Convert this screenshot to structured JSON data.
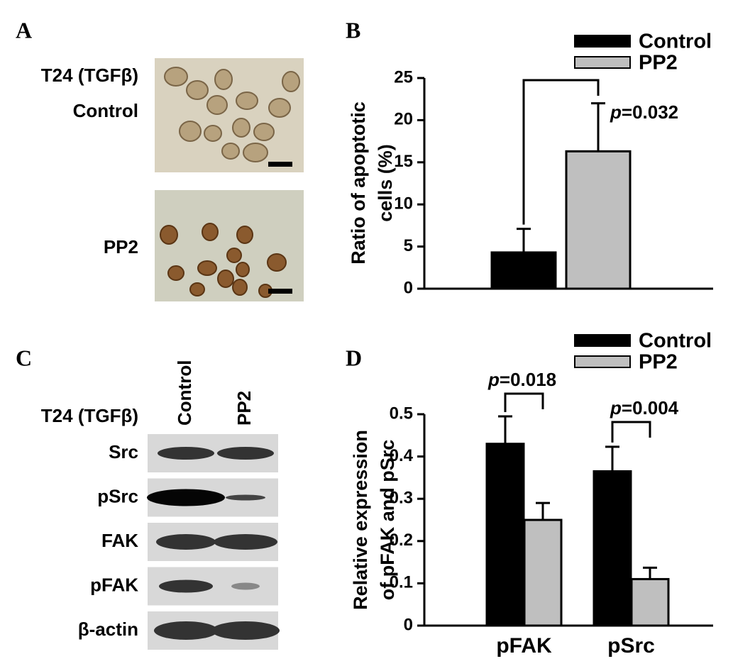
{
  "panel_letters": [
    "A",
    "B",
    "C",
    "D"
  ],
  "panel_a": {
    "cell_line": "T24 (TGFβ)",
    "conditions": [
      "Control",
      "PP2"
    ]
  },
  "panel_c": {
    "cell_line": "T24 (TGFβ)",
    "lanes": [
      "Control",
      "PP2"
    ],
    "proteins": [
      "Src",
      "pSrc",
      "FAK",
      "pFAK",
      "β-actin"
    ]
  },
  "chart_data": [
    {
      "type": "bar",
      "ylabel": [
        "Ratio of apoptotic",
        "cells (%)"
      ],
      "series": [
        {
          "name": "Control",
          "color": "#000000",
          "values": [
            4.3
          ],
          "errors": [
            2.8
          ]
        },
        {
          "name": "PP2",
          "color": "#bfbfbf",
          "values": [
            16.3
          ],
          "errors": [
            5.7
          ]
        }
      ],
      "ylim": [
        0,
        25
      ],
      "yticks": [
        0,
        5,
        10,
        15,
        20,
        25
      ],
      "annotations": [
        {
          "italic": "p",
          "text": "=0.032"
        }
      ],
      "legend": "upper right"
    },
    {
      "type": "bar",
      "ylabel": [
        "Relative expression",
        "of pFAK and pSrc"
      ],
      "categories": [
        "pFAK",
        "pSrc"
      ],
      "series": [
        {
          "name": "Control",
          "color": "#000000",
          "values": [
            0.43,
            0.365
          ],
          "errors": [
            0.065,
            0.058
          ]
        },
        {
          "name": "PP2",
          "color": "#bfbfbf",
          "values": [
            0.25,
            0.11
          ],
          "errors": [
            0.04,
            0.027
          ]
        }
      ],
      "ylim": [
        0,
        0.5
      ],
      "yticks": [
        0,
        0.1,
        0.2,
        0.3,
        0.4,
        0.5
      ],
      "annotations": [
        {
          "italic": "p",
          "text": "=0.018"
        },
        {
          "italic": "p",
          "text": "=0.004"
        }
      ],
      "legend": "upper right"
    }
  ]
}
